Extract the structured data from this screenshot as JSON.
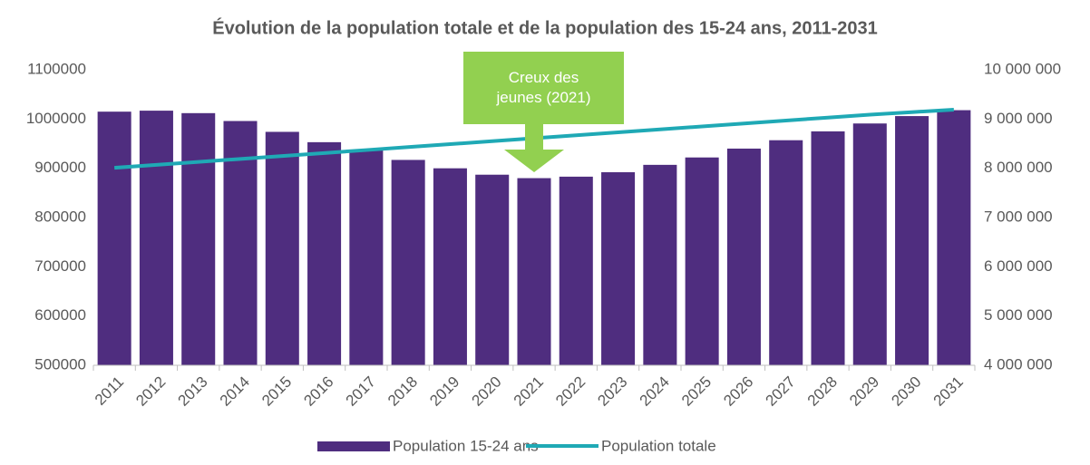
{
  "chart_data": {
    "type": "bar",
    "title": "Évolution de la population totale et de la population des 15-24 ans, 2011-2031",
    "categories": [
      "2011",
      "2012",
      "2013",
      "2014",
      "2015",
      "2016",
      "2017",
      "2018",
      "2019",
      "2020",
      "2021",
      "2022",
      "2023",
      "2024",
      "2025",
      "2026",
      "2027",
      "2028",
      "2029",
      "2030",
      "2031"
    ],
    "series": [
      {
        "name": "Population 15-24 ans",
        "type": "bar",
        "color": "#4f2d7f",
        "values": [
          1015000,
          1017000,
          1012000,
          996000,
          974000,
          953000,
          938000,
          917000,
          900000,
          887000,
          880000,
          883000,
          892000,
          907000,
          922000,
          940000,
          957000,
          975000,
          991000,
          1006000,
          1018000
        ]
      },
      {
        "name": "Population totale",
        "type": "line",
        "color": "#1fa9b5",
        "axis": "y2",
        "values": [
          8010000,
          8070000,
          8130000,
          8190000,
          8250000,
          8310000,
          8370000,
          8430000,
          8490000,
          8550000,
          8610000,
          8670000,
          8730000,
          8790000,
          8850000,
          8910000,
          8970000,
          9030000,
          9090000,
          9140000,
          9190000
        ]
      }
    ],
    "ylim": [
      500000,
      1100000
    ],
    "yticks": [
      500000,
      600000,
      700000,
      800000,
      900000,
      1000000,
      1100000
    ],
    "y2lim": [
      4000000,
      10000000
    ],
    "y2ticks": [
      {
        "value": 4000000,
        "label": "4 000 000"
      },
      {
        "value": 5000000,
        "label": "5 000 000"
      },
      {
        "value": 6000000,
        "label": "6 000 000"
      },
      {
        "value": 7000000,
        "label": "7 000 000"
      },
      {
        "value": 8000000,
        "label": "8 000 000"
      },
      {
        "value": 9000000,
        "label": "9 000 000"
      },
      {
        "value": 10000000,
        "label": "10 000 000"
      }
    ],
    "annotation": {
      "text": "Creux des jeunes (2021)",
      "category": "2021",
      "color": "#92d050"
    },
    "grid": false,
    "legend": "bottom"
  }
}
